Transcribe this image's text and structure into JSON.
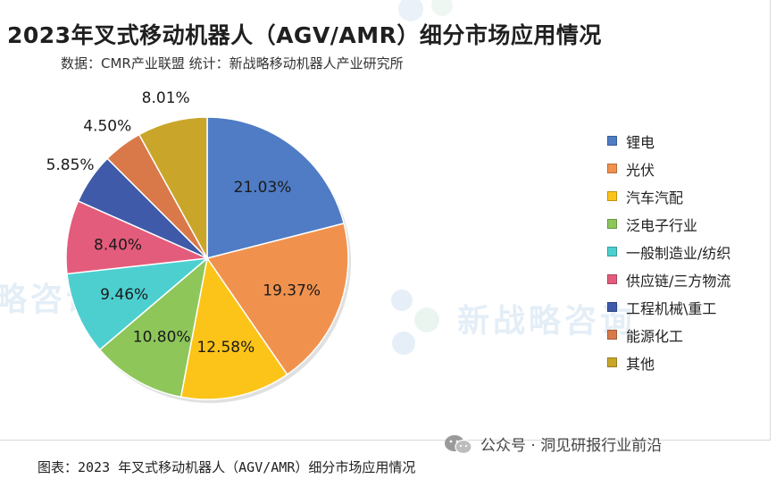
{
  "chart_data": {
    "type": "pie",
    "title": "2023年叉式移动机器人（AGV/AMR）细分市场应用情况",
    "subtitle": "数据：CMR产业联盟 统计：新战略移动机器人产业研究所",
    "legend_position": "right",
    "slices": [
      {
        "name": "锂电",
        "value": 21.03,
        "label": "21.03%",
        "color": "#4f7cc4"
      },
      {
        "name": "光伏",
        "value": 19.37,
        "label": "19.37%",
        "color": "#f0924e"
      },
      {
        "name": "汽车汽配",
        "value": 12.58,
        "label": "12.58%",
        "color": "#fcc419"
      },
      {
        "name": "泛电子行业",
        "value": 10.8,
        "label": "10.80%",
        "color": "#8ec65a"
      },
      {
        "name": "一般制造业/纺织",
        "value": 9.46,
        "label": "9.46%",
        "color": "#4dcfd0"
      },
      {
        "name": "供应链/三方物流",
        "value": 8.4,
        "label": "8.40%",
        "color": "#e45c7c"
      },
      {
        "name": "工程机械\\重工",
        "value": 5.85,
        "label": "5.85%",
        "color": "#3f5aa8"
      },
      {
        "name": "能源化工",
        "value": 4.5,
        "label": "4.50%",
        "color": "#d9794a"
      },
      {
        "name": "其他",
        "value": 8.01,
        "label": "8.01%",
        "color": "#c9a62a"
      }
    ]
  },
  "watermark": {
    "text": "新战略咨询",
    "short": "略咨询"
  },
  "source": {
    "account": "公众号 · 洞见研报行业前沿",
    "icon": "wechat-icon"
  },
  "caption": "图表：2023 年叉式移动机器人（AGV/AMR）细分市场应用情况"
}
